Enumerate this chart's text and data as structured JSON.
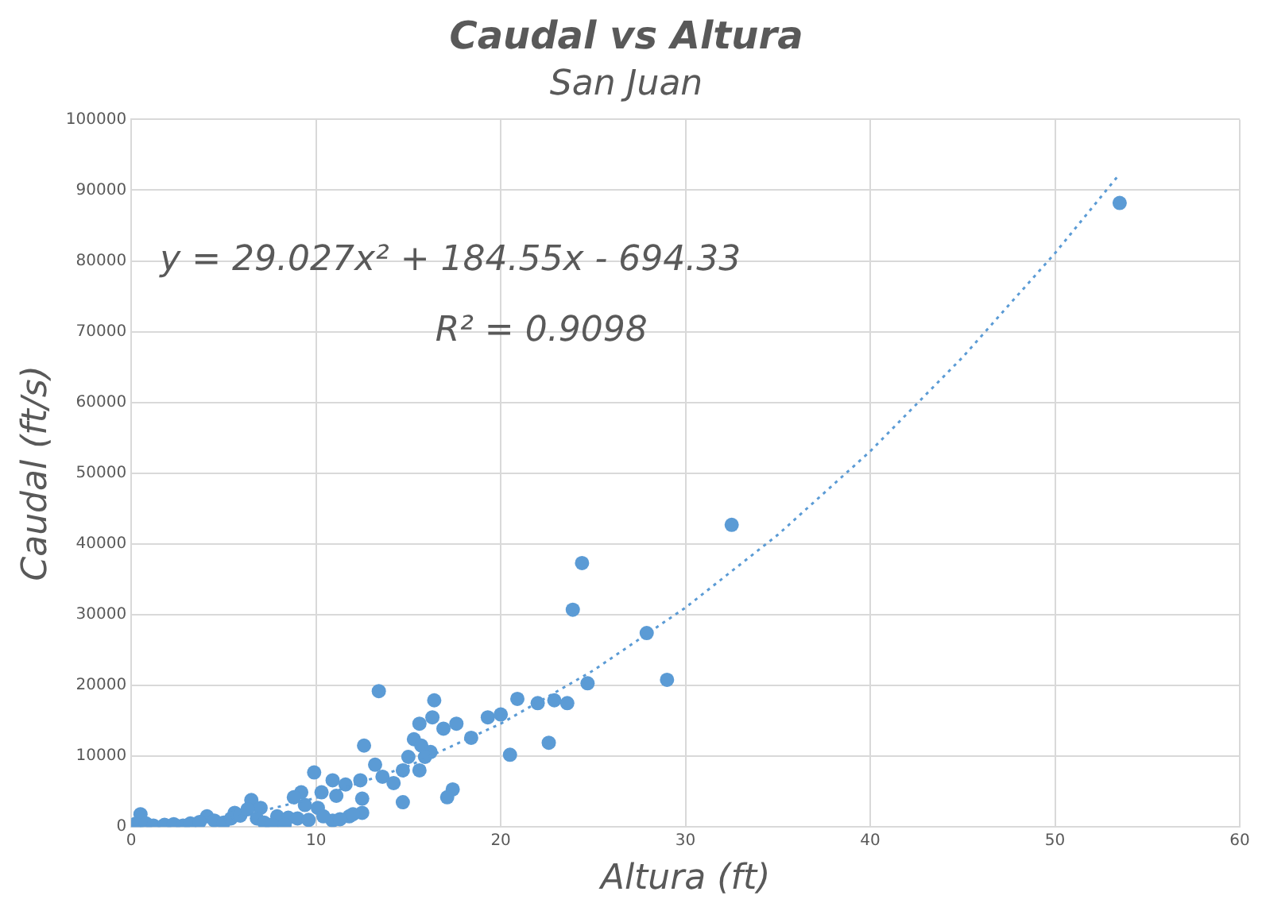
{
  "chart_data": {
    "type": "scatter",
    "title": "Caudal vs Altura",
    "subtitle": "San Juan",
    "xlabel": "Altura (ft)",
    "ylabel": "Caudal (ft/s)",
    "annotations": [
      "y = 29.027x² + 184.55x - 694.33",
      "R² = 0.9098"
    ],
    "xlim": [
      0,
      60
    ],
    "xticks": [
      0,
      10,
      20,
      30,
      40,
      50,
      60
    ],
    "ylim": [
      0,
      100000
    ],
    "yticks": [
      0,
      10000,
      20000,
      30000,
      40000,
      50000,
      60000,
      70000,
      80000,
      90000,
      100000
    ],
    "grid": true,
    "legend": false,
    "marker": "circle",
    "series": [
      {
        "color": "#5b9bd5",
        "x": [
          53.5,
          32.5,
          24.4,
          23.9,
          27.9,
          29.0,
          24.7,
          13.4,
          20.9,
          22.9,
          22.0,
          23.6,
          16.4,
          19.3,
          20.0,
          16.3,
          15.6,
          16.9,
          17.6,
          18.4,
          15.3,
          20.5,
          22.6,
          15.7,
          16.2,
          15.0,
          13.2,
          13.6,
          14.2,
          14.7,
          15.6,
          17.4,
          17.1,
          14.7,
          15.9,
          12.6,
          9.9,
          10.9,
          11.6,
          12.4,
          10.3,
          9.2,
          8.8,
          11.1,
          12.5,
          6.5,
          9.4,
          10.1,
          7.0,
          12.5,
          11.8,
          10.9,
          5.6,
          4.1,
          0.5,
          7.9,
          8.5,
          0.2,
          0.3,
          0.8,
          1.2,
          1.8,
          2.3,
          2.8,
          3.2,
          3.7,
          4.5,
          5.0,
          5.4,
          5.9,
          6.3,
          6.8,
          7.2,
          7.6,
          8.3,
          9.0,
          9.6,
          10.4,
          11.3,
          12.0
        ],
        "values": [
          88200,
          42700,
          37300,
          30700,
          27400,
          20800,
          20300,
          19200,
          18100,
          17900,
          17500,
          17500,
          17900,
          15500,
          15900,
          15500,
          14600,
          13900,
          14600,
          12600,
          12400,
          10200,
          11900,
          11500,
          10600,
          9900,
          8800,
          7100,
          6200,
          8000,
          8000,
          5300,
          4200,
          3500,
          9900,
          11500,
          7700,
          6600,
          6000,
          6600,
          4900,
          4900,
          4200,
          4400,
          4000,
          3800,
          3100,
          2700,
          2700,
          2000,
          1500,
          900,
          2000,
          1500,
          1800,
          1500,
          1300,
          400,
          300,
          500,
          200,
          300,
          400,
          200,
          500,
          700,
          900,
          600,
          1200,
          1600,
          2500,
          1200,
          600,
          300,
          300,
          1200,
          1000,
          1500,
          1100,
          1800
        ]
      },
      {
        "type": "line",
        "color": "#5b9bd5",
        "line_style": "dotted",
        "marker": "none",
        "x": [
          5,
          10,
          15,
          20,
          25,
          30,
          35,
          40,
          45,
          50,
          53.5
        ],
        "values": [
          1000,
          4100,
          8600,
          14600,
          22100,
          31000,
          41300,
          53100,
          66400,
          81100,
          92300
        ]
      }
    ]
  }
}
